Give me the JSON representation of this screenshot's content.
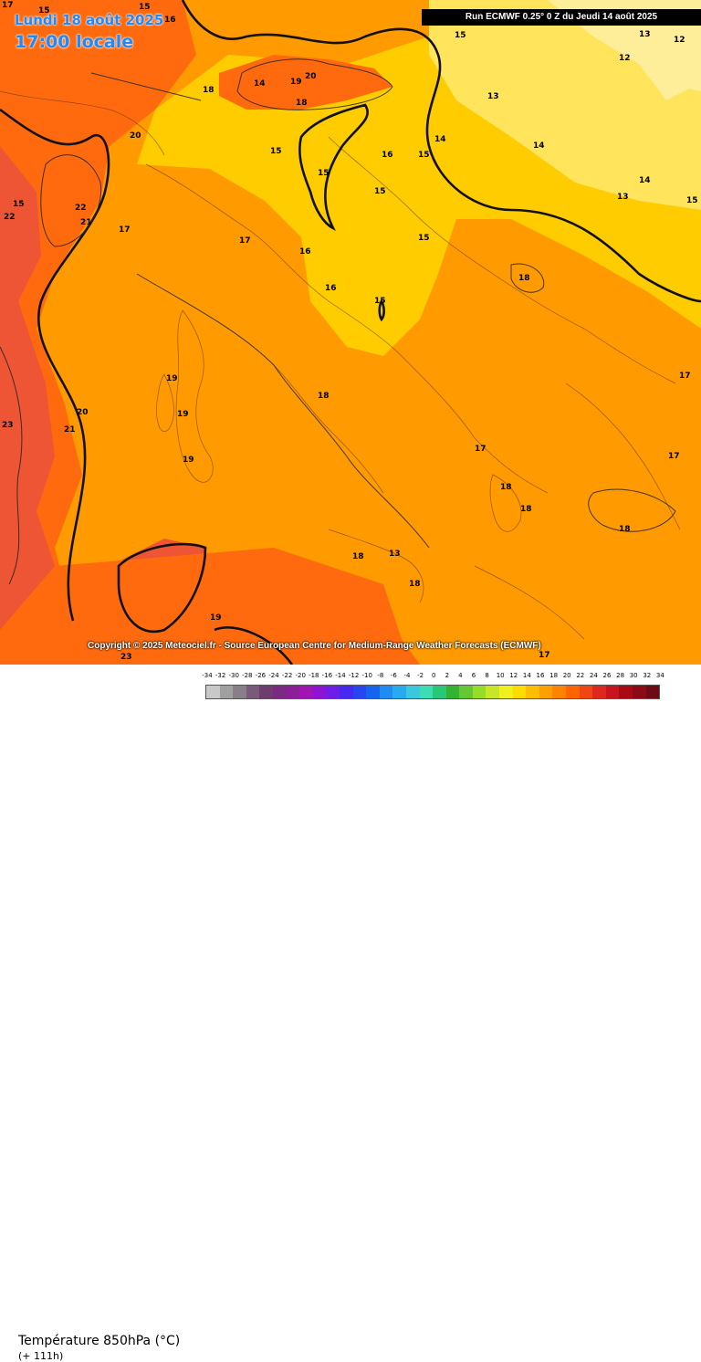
{
  "header": {
    "date": "Lundi 18 août 2025",
    "time": "17:00 locale",
    "run": "Run ECMWF 0.25° 0 Z du Jeudi 14 août 2025"
  },
  "map": {
    "copyright": "Copyright © 2025 Meteociel.fr - Source European Centre for Medium-Range Weather Forecasts (ECMWF)",
    "contour_labels": [
      "15",
      "16",
      "15",
      "17",
      "15",
      "13",
      "12",
      "12",
      "18",
      "14",
      "19",
      "20",
      "18",
      "14",
      "15",
      "13",
      "20",
      "16",
      "14",
      "15",
      "22",
      "21",
      "17",
      "15",
      "15",
      "13",
      "14",
      "15",
      "17",
      "16",
      "15",
      "16",
      "15",
      "18",
      "15",
      "22",
      "19",
      "23",
      "21",
      "20",
      "19",
      "17",
      "17",
      "18",
      "19",
      "17",
      "18",
      "18",
      "18",
      "13",
      "18",
      "18",
      "19",
      "23",
      "17"
    ],
    "colors": {
      "very_warm": "#ee5535",
      "warm": "#ff6a0e",
      "mild": "#ff9a00",
      "cool": "#ffcc00",
      "cooler": "#ffe45c",
      "coolest": "#ffee99"
    }
  },
  "legend": {
    "title": "Température 850hPa (°C)",
    "subtitle": "(+ 111h)",
    "ticks": [
      "-34",
      "-32",
      "-30",
      "-28",
      "-26",
      "-24",
      "-22",
      "-20",
      "-18",
      "-16",
      "-14",
      "-12",
      "-10",
      "-8",
      "-6",
      "-4",
      "-2",
      "0",
      "2",
      "4",
      "6",
      "8",
      "10",
      "12",
      "14",
      "16",
      "18",
      "20",
      "22",
      "24",
      "26",
      "28",
      "30",
      "32",
      "34"
    ],
    "swatch_colors": [
      "#c8c8c8",
      "#a0a0a0",
      "#888088",
      "#7a5a7a",
      "#6e3c6e",
      "#7a2a82",
      "#8c1e9a",
      "#a014b4",
      "#8c14d2",
      "#6e1ee6",
      "#4628f0",
      "#2846f0",
      "#1464f0",
      "#1e8cf0",
      "#28aaf0",
      "#3cc8dc",
      "#3cdcb4",
      "#28c878",
      "#32b432",
      "#64c832",
      "#96dc28",
      "#c8e628",
      "#f0f01e",
      "#ffdc00",
      "#ffbe00",
      "#ffa000",
      "#ff8200",
      "#ff6400",
      "#f04614",
      "#dc281e",
      "#c8141e",
      "#aa0a14",
      "#8c0a14",
      "#6e0a14"
    ]
  }
}
